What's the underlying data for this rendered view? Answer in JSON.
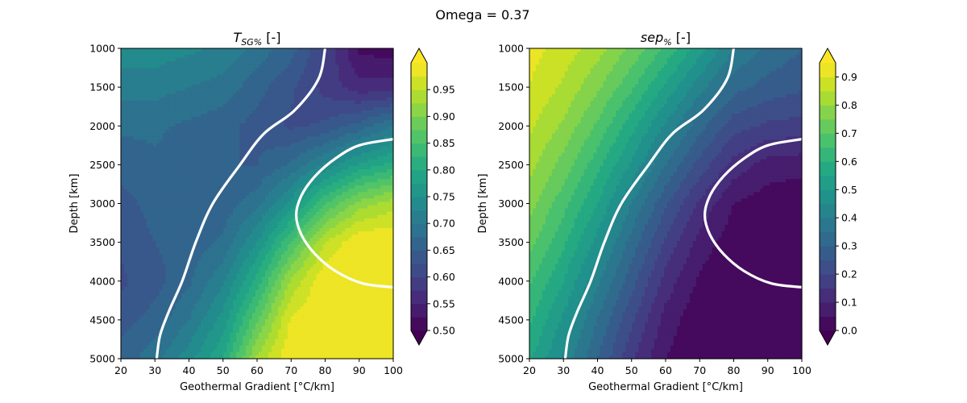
{
  "figure": {
    "suptitle": "Omega = 0.37"
  },
  "chart_data": [
    {
      "type": "heatmap",
      "title": {
        "base": "T",
        "sub": "SG%",
        "suffix": " [-]"
      },
      "xlabel": "Geothermal Gradient [°C/km]",
      "ylabel": "Depth [km]",
      "xlim": [
        20,
        100
      ],
      "ylim": [
        5000,
        1000
      ],
      "y_inverted": true,
      "xticks": [
        "20",
        "30",
        "40",
        "50",
        "60",
        "70",
        "80",
        "90",
        "100"
      ],
      "yticks": [
        "1000",
        "1500",
        "2000",
        "2500",
        "3000",
        "3500",
        "4000",
        "4500",
        "5000"
      ],
      "colormap": "viridis",
      "color_range": [
        0.5,
        1.0
      ],
      "levels": [
        0.5,
        0.525,
        0.55,
        0.575,
        0.6,
        0.625,
        0.65,
        0.675,
        0.7,
        0.725,
        0.75,
        0.775,
        0.8,
        0.825,
        0.85,
        0.875,
        0.9,
        0.925,
        0.95,
        0.975
      ],
      "colorbar": {
        "extend": "both",
        "ticks": [
          "0.50",
          "0.55",
          "0.60",
          "0.65",
          "0.70",
          "0.75",
          "0.80",
          "0.85",
          "0.90",
          "0.95"
        ]
      },
      "field": {
        "x": [
          20,
          30,
          40,
          50,
          60,
          70,
          80,
          90,
          100
        ],
        "y": [
          1000,
          1500,
          2000,
          2500,
          3000,
          3500,
          4000,
          4500,
          5000
        ],
        "z": [
          [
            0.74,
            0.74,
            0.73,
            0.72,
            0.69,
            0.66,
            0.6,
            0.52,
            0.51
          ],
          [
            0.71,
            0.71,
            0.7,
            0.69,
            0.66,
            0.63,
            0.59,
            0.56,
            0.56
          ],
          [
            0.68,
            0.68,
            0.67,
            0.66,
            0.64,
            0.62,
            0.63,
            0.66,
            0.7
          ],
          [
            0.66,
            0.67,
            0.66,
            0.65,
            0.65,
            0.68,
            0.73,
            0.78,
            0.81
          ],
          [
            0.64,
            0.66,
            0.66,
            0.66,
            0.69,
            0.76,
            0.85,
            0.91,
            0.94
          ],
          [
            0.63,
            0.65,
            0.66,
            0.68,
            0.75,
            0.85,
            0.95,
            1.0,
            1.0
          ],
          [
            0.62,
            0.64,
            0.67,
            0.72,
            0.81,
            0.93,
            1.0,
            1.0,
            1.0
          ],
          [
            0.64,
            0.66,
            0.7,
            0.76,
            0.87,
            0.98,
            1.0,
            1.0,
            1.0
          ],
          [
            0.66,
            0.69,
            0.74,
            0.8,
            0.93,
            1.0,
            1.0,
            1.0,
            1.0
          ]
        ]
      },
      "boundary_lines": [
        {
          "color": "#ffffff",
          "points": [
            [
              80,
              1000
            ],
            [
              78,
              1400
            ],
            [
              71,
              1800
            ],
            [
              62,
              2100
            ],
            [
              55,
              2500
            ],
            [
              47,
              3000
            ],
            [
              42,
              3500
            ],
            [
              38,
              4000
            ],
            [
              34,
              4400
            ],
            [
              31.5,
              4700
            ],
            [
              30.5,
              5000
            ]
          ]
        },
        {
          "color": "#ffffff",
          "points": [
            [
              100,
              2170
            ],
            [
              90,
              2250
            ],
            [
              83,
              2420
            ],
            [
              77,
              2650
            ],
            [
              73,
              2900
            ],
            [
              71.5,
              3150
            ],
            [
              73,
              3400
            ],
            [
              77,
              3650
            ],
            [
              83,
              3870
            ],
            [
              91,
              4030
            ],
            [
              100,
              4080
            ]
          ]
        }
      ]
    },
    {
      "type": "heatmap",
      "title": {
        "base": "sep",
        "sub": "%",
        "suffix": " [-]"
      },
      "xlabel": "Geothermal Gradient [°C/km]",
      "ylabel": "Depth [km]",
      "xlim": [
        20,
        100
      ],
      "ylim": [
        5000,
        1000
      ],
      "y_inverted": true,
      "xticks": [
        "20",
        "30",
        "40",
        "50",
        "60",
        "70",
        "80",
        "90",
        "100"
      ],
      "yticks": [
        "1000",
        "1500",
        "2000",
        "2500",
        "3000",
        "3500",
        "4000",
        "4500",
        "5000"
      ],
      "colormap": "viridis",
      "color_range": [
        0.0,
        0.95
      ],
      "levels": [
        0.0,
        0.05,
        0.1,
        0.15,
        0.2,
        0.25,
        0.3,
        0.35,
        0.4,
        0.45,
        0.5,
        0.55,
        0.6,
        0.65,
        0.7,
        0.75,
        0.8,
        0.85,
        0.9
      ],
      "colorbar": {
        "extend": "both",
        "ticks": [
          "0.0",
          "0.1",
          "0.2",
          "0.3",
          "0.4",
          "0.5",
          "0.6",
          "0.7",
          "0.8",
          "0.9"
        ]
      },
      "field": {
        "x": [
          20,
          30,
          40,
          50,
          60,
          70,
          80,
          90,
          100
        ],
        "y": [
          1000,
          1500,
          2000,
          2500,
          3000,
          3500,
          4000,
          4500,
          5000
        ],
        "z": [
          [
            0.92,
            0.88,
            0.82,
            0.74,
            0.64,
            0.52,
            0.4,
            0.34,
            0.3
          ],
          [
            0.9,
            0.84,
            0.76,
            0.66,
            0.54,
            0.42,
            0.32,
            0.28,
            0.26
          ],
          [
            0.86,
            0.79,
            0.69,
            0.57,
            0.44,
            0.32,
            0.22,
            0.19,
            0.18
          ],
          [
            0.82,
            0.73,
            0.62,
            0.49,
            0.35,
            0.23,
            0.13,
            0.08,
            0.07
          ],
          [
            0.77,
            0.67,
            0.55,
            0.4,
            0.26,
            0.14,
            0.05,
            0.02,
            0.01
          ],
          [
            0.72,
            0.61,
            0.48,
            0.33,
            0.19,
            0.08,
            0.02,
            0.0,
            0.0
          ],
          [
            0.66,
            0.55,
            0.41,
            0.27,
            0.13,
            0.04,
            0.0,
            0.0,
            0.0
          ],
          [
            0.61,
            0.49,
            0.35,
            0.21,
            0.08,
            0.01,
            0.0,
            0.0,
            0.0
          ],
          [
            0.56,
            0.44,
            0.3,
            0.16,
            0.05,
            0.0,
            0.0,
            0.0,
            0.0
          ]
        ]
      },
      "boundary_lines": [
        {
          "color": "#ffffff",
          "points": [
            [
              80,
              1000
            ],
            [
              78,
              1400
            ],
            [
              71,
              1800
            ],
            [
              62,
              2100
            ],
            [
              55,
              2500
            ],
            [
              47,
              3000
            ],
            [
              42,
              3500
            ],
            [
              38,
              4000
            ],
            [
              34,
              4400
            ],
            [
              31.5,
              4700
            ],
            [
              30.5,
              5000
            ]
          ]
        },
        {
          "color": "#ffffff",
          "points": [
            [
              100,
              2170
            ],
            [
              90,
              2250
            ],
            [
              83,
              2420
            ],
            [
              77,
              2650
            ],
            [
              73,
              2900
            ],
            [
              71.5,
              3150
            ],
            [
              73,
              3400
            ],
            [
              77,
              3650
            ],
            [
              83,
              3870
            ],
            [
              91,
              4030
            ],
            [
              100,
              4080
            ]
          ]
        }
      ]
    }
  ]
}
